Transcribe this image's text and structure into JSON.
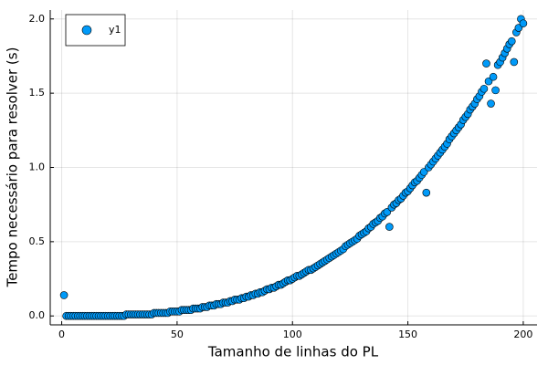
{
  "chart_data": {
    "type": "scatter",
    "xlabel": "Tamanho de linhas do PL",
    "ylabel": "Tempo necessário para resolver (s)",
    "xlim": [
      -4.97,
      205.97
    ],
    "ylim": [
      -0.06,
      2.06
    ],
    "xticks": [
      0,
      50,
      100,
      150,
      200
    ],
    "yticks": [
      {
        "value": 0,
        "label": "0.0"
      },
      0.5,
      {
        "value": 1,
        "label": "1.0"
      },
      1.5,
      {
        "value": 2,
        "label": "2.0"
      }
    ],
    "grid": true,
    "legend": "top-left",
    "series": [
      {
        "name": "y1",
        "color": "#009af9",
        "x": [
          1,
          2,
          3,
          4,
          5,
          6,
          7,
          8,
          9,
          10,
          11,
          12,
          13,
          14,
          15,
          16,
          17,
          18,
          19,
          20,
          21,
          22,
          23,
          24,
          25,
          26,
          27,
          28,
          29,
          30,
          31,
          32,
          33,
          34,
          35,
          36,
          37,
          38,
          39,
          40,
          41,
          42,
          43,
          44,
          45,
          46,
          47,
          48,
          49,
          50,
          51,
          52,
          53,
          54,
          55,
          56,
          57,
          58,
          59,
          60,
          61,
          62,
          63,
          64,
          65,
          66,
          67,
          68,
          69,
          70,
          71,
          72,
          73,
          74,
          75,
          76,
          77,
          78,
          79,
          80,
          81,
          82,
          83,
          84,
          85,
          86,
          87,
          88,
          89,
          90,
          91,
          92,
          93,
          94,
          95,
          96,
          97,
          98,
          99,
          100,
          101,
          102,
          103,
          104,
          105,
          106,
          107,
          108,
          109,
          110,
          111,
          112,
          113,
          114,
          115,
          116,
          117,
          118,
          119,
          120,
          121,
          122,
          123,
          124,
          125,
          126,
          127,
          128,
          129,
          130,
          131,
          132,
          133,
          134,
          135,
          136,
          137,
          138,
          139,
          140,
          141,
          142,
          143,
          144,
          145,
          146,
          147,
          148,
          149,
          150,
          151,
          152,
          153,
          154,
          155,
          156,
          157,
          158,
          159,
          160,
          161,
          162,
          163,
          164,
          165,
          166,
          167,
          168,
          169,
          170,
          171,
          172,
          173,
          174,
          175,
          176,
          177,
          178,
          179,
          180,
          181,
          182,
          183,
          184,
          185,
          186,
          187,
          188,
          189,
          190,
          191,
          192,
          193,
          194,
          195,
          196,
          197,
          198,
          199,
          200
        ],
        "values": [
          0.14,
          0,
          0,
          0,
          0,
          0,
          0,
          0,
          0,
          0,
          0,
          0,
          0,
          0,
          0,
          0,
          0,
          0,
          0,
          0,
          0,
          0,
          0,
          0,
          0,
          0,
          0,
          0.01,
          0.01,
          0.01,
          0.01,
          0.01,
          0.01,
          0.01,
          0.01,
          0.01,
          0.01,
          0.01,
          0.01,
          0.02,
          0.02,
          0.02,
          0.02,
          0.02,
          0.02,
          0.02,
          0.03,
          0.03,
          0.03,
          0.03,
          0.03,
          0.04,
          0.04,
          0.04,
          0.04,
          0.04,
          0.05,
          0.05,
          0.05,
          0.05,
          0.06,
          0.06,
          0.06,
          0.07,
          0.07,
          0.07,
          0.08,
          0.08,
          0.08,
          0.09,
          0.09,
          0.09,
          0.1,
          0.1,
          0.11,
          0.11,
          0.11,
          0.12,
          0.12,
          0.13,
          0.13,
          0.14,
          0.14,
          0.15,
          0.15,
          0.16,
          0.16,
          0.17,
          0.18,
          0.18,
          0.19,
          0.19,
          0.2,
          0.21,
          0.21,
          0.22,
          0.23,
          0.24,
          0.24,
          0.25,
          0.26,
          0.27,
          0.27,
          0.28,
          0.29,
          0.3,
          0.31,
          0.31,
          0.32,
          0.33,
          0.34,
          0.35,
          0.36,
          0.37,
          0.38,
          0.39,
          0.4,
          0.41,
          0.42,
          0.43,
          0.44,
          0.45,
          0.47,
          0.48,
          0.49,
          0.5,
          0.51,
          0.52,
          0.54,
          0.55,
          0.56,
          0.57,
          0.59,
          0.6,
          0.62,
          0.63,
          0.64,
          0.66,
          0.67,
          0.69,
          0.7,
          0.6,
          0.73,
          0.75,
          0.76,
          0.78,
          0.79,
          0.81,
          0.83,
          0.84,
          0.86,
          0.88,
          0.9,
          0.91,
          0.93,
          0.95,
          0.97,
          0.83,
          1.0,
          1.02,
          1.04,
          1.06,
          1.08,
          1.1,
          1.12,
          1.14,
          1.16,
          1.19,
          1.21,
          1.23,
          1.25,
          1.27,
          1.29,
          1.32,
          1.34,
          1.36,
          1.39,
          1.41,
          1.43,
          1.46,
          1.48,
          1.51,
          1.53,
          1.7,
          1.58,
          1.43,
          1.61,
          1.52,
          1.69,
          1.71,
          1.74,
          1.77,
          1.8,
          1.83,
          1.85,
          1.71,
          1.91,
          1.94,
          2.0,
          1.97
        ]
      }
    ]
  }
}
